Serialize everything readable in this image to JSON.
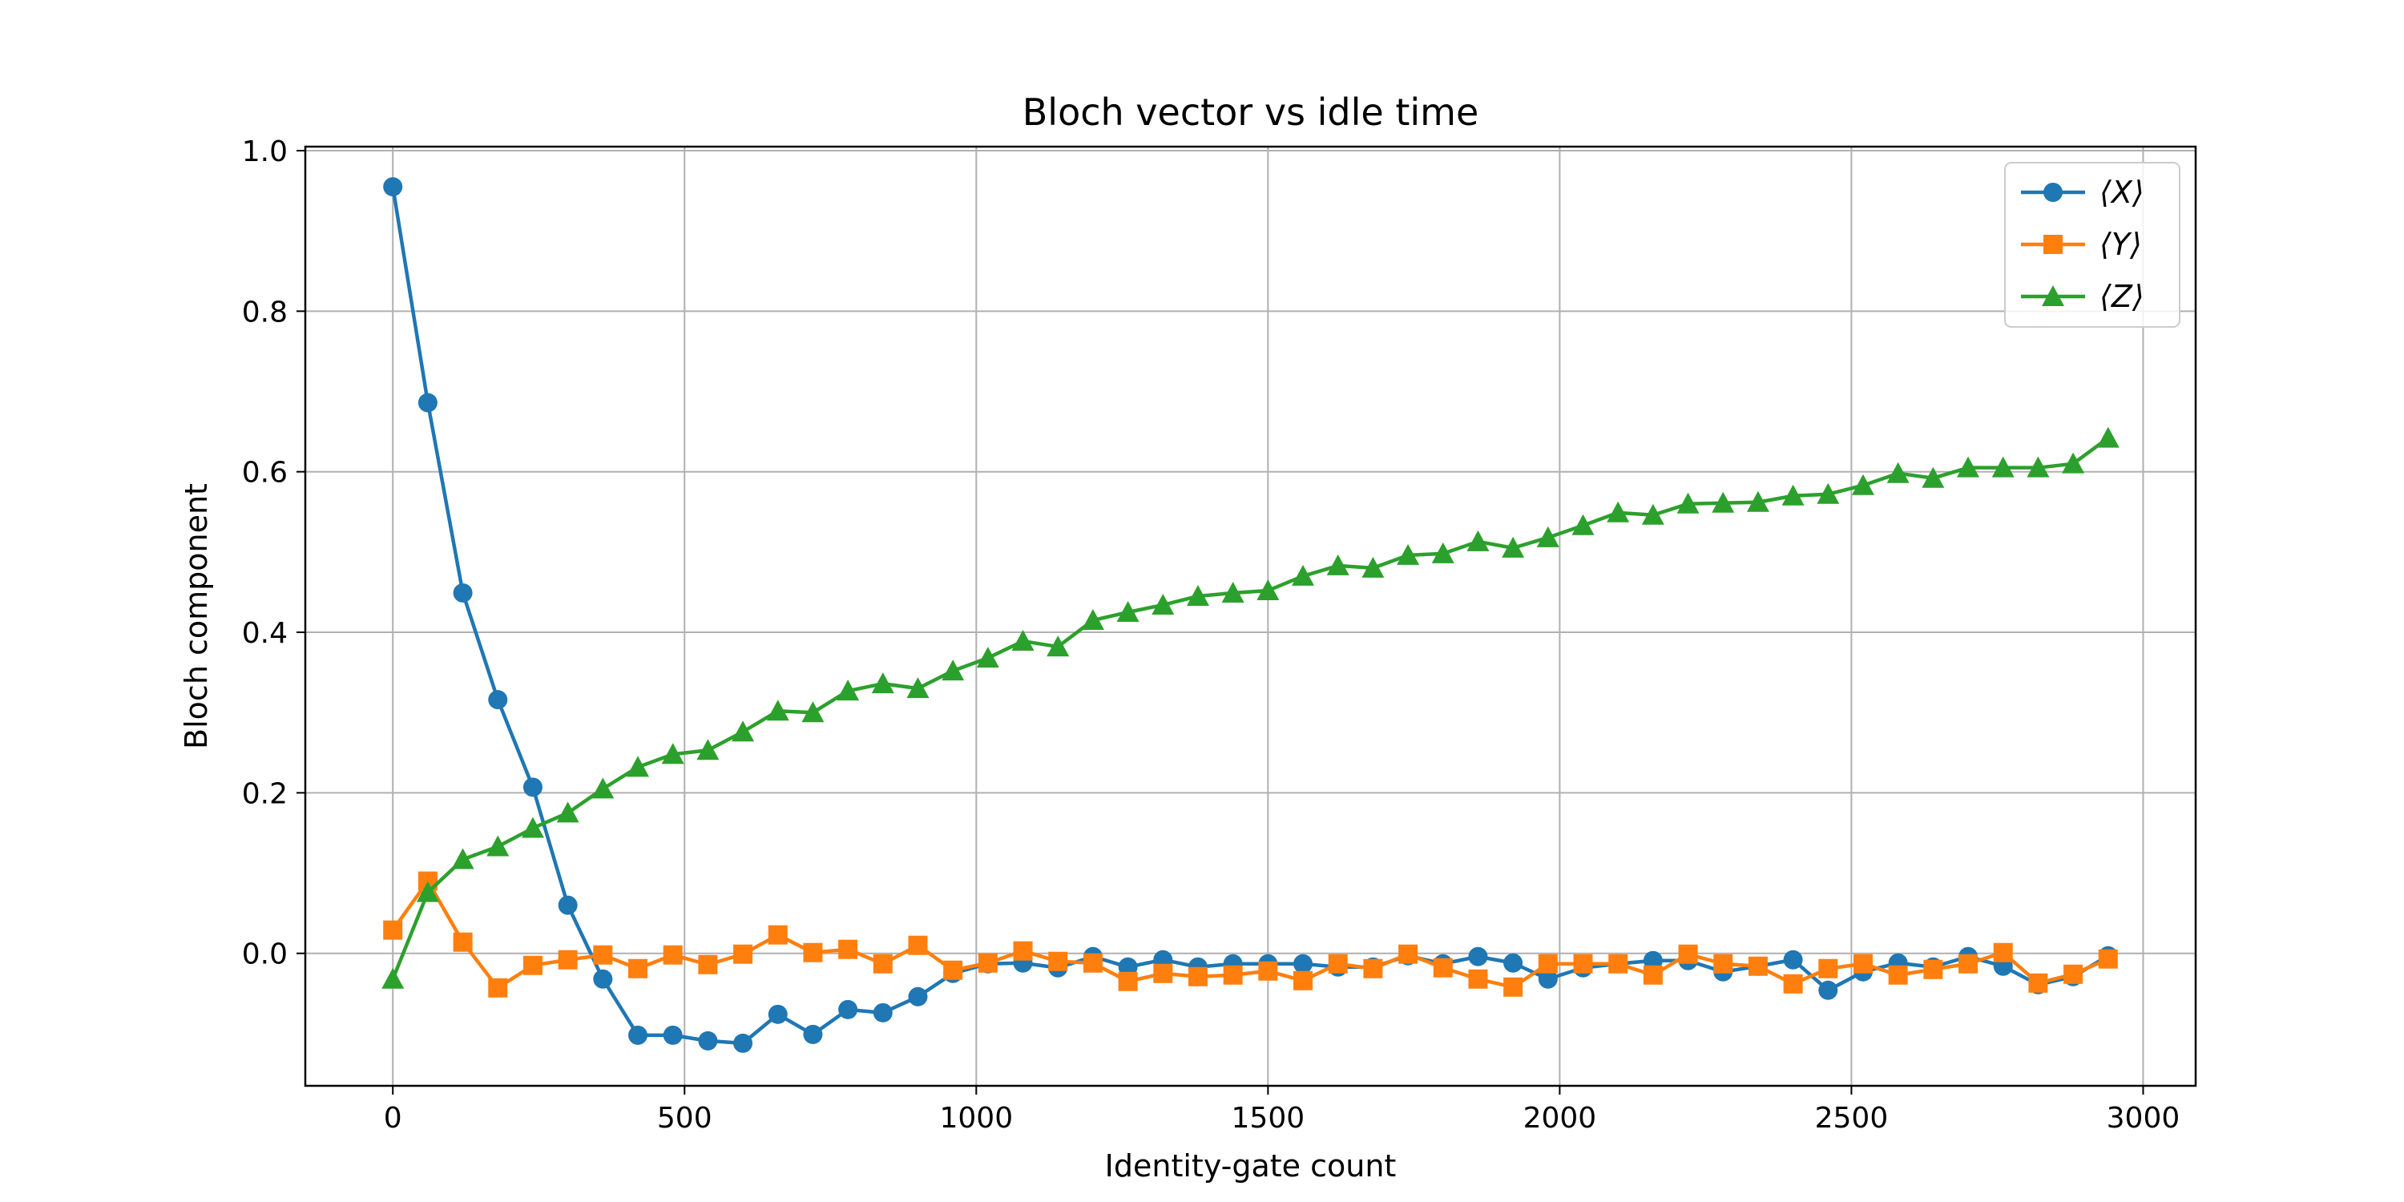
{
  "chart_data": {
    "type": "line",
    "title": "Bloch vector vs idle time",
    "xlabel": "Identity-gate count",
    "ylabel": "Bloch component",
    "xlim": [
      -150,
      3090
    ],
    "ylim": [
      -0.165,
      1.005
    ],
    "xticks": [
      0,
      500,
      1000,
      1500,
      2000,
      2500,
      3000
    ],
    "xtick_labels": [
      "0",
      "500",
      "1000",
      "1500",
      "2000",
      "2500",
      "3000"
    ],
    "yticks": [
      0.0,
      0.2,
      0.4,
      0.6,
      0.8,
      1.0
    ],
    "ytick_labels": [
      "0.0",
      "0.2",
      "0.4",
      "0.6",
      "0.8",
      "1.0"
    ],
    "grid": true,
    "legend_position": "top-right",
    "x": [
      0,
      60,
      120,
      180,
      240,
      300,
      360,
      420,
      480,
      540,
      600,
      660,
      720,
      780,
      840,
      900,
      960,
      1020,
      1080,
      1140,
      1200,
      1260,
      1320,
      1380,
      1440,
      1500,
      1560,
      1620,
      1680,
      1740,
      1800,
      1860,
      1920,
      1980,
      2040,
      2100,
      2160,
      2220,
      2280,
      2340,
      2400,
      2460,
      2520,
      2580,
      2640,
      2700,
      2760,
      2820,
      2880,
      2940
    ],
    "series": [
      {
        "name": "⟨X⟩",
        "color": "#1f77b4",
        "marker": "circle",
        "values": [
          0.955,
          0.686,
          0.449,
          0.316,
          0.207,
          0.06,
          -0.032,
          -0.102,
          -0.102,
          -0.109,
          -0.112,
          -0.076,
          -0.101,
          -0.07,
          -0.074,
          -0.054,
          -0.025,
          -0.013,
          -0.012,
          -0.018,
          -0.004,
          -0.017,
          -0.008,
          -0.017,
          -0.013,
          -0.013,
          -0.013,
          -0.017,
          -0.017,
          -0.003,
          -0.013,
          -0.004,
          -0.012,
          -0.032,
          -0.018,
          -0.013,
          -0.009,
          -0.009,
          -0.023,
          -0.016,
          -0.008,
          -0.046,
          -0.023,
          -0.012,
          -0.017,
          -0.004,
          -0.016,
          -0.039,
          -0.029,
          -0.003
        ]
      },
      {
        "name": "⟨Y⟩",
        "color": "#ff7f0e",
        "marker": "square",
        "values": [
          0.029,
          0.09,
          0.014,
          -0.043,
          -0.015,
          -0.008,
          -0.002,
          -0.019,
          -0.002,
          -0.014,
          -0.001,
          0.023,
          0.001,
          0.005,
          -0.013,
          0.01,
          -0.021,
          -0.012,
          0.003,
          -0.01,
          -0.012,
          -0.035,
          -0.025,
          -0.029,
          -0.027,
          -0.022,
          -0.034,
          -0.013,
          -0.019,
          -0.001,
          -0.018,
          -0.032,
          -0.042,
          -0.013,
          -0.013,
          -0.013,
          -0.027,
          -0.001,
          -0.013,
          -0.016,
          -0.038,
          -0.019,
          -0.013,
          -0.027,
          -0.02,
          -0.013,
          0.001,
          -0.037,
          -0.026,
          -0.007
        ]
      },
      {
        "name": "⟨Z⟩",
        "color": "#2ca02c",
        "marker": "triangle",
        "values": [
          -0.032,
          0.076,
          0.117,
          0.133,
          0.156,
          0.175,
          0.205,
          0.232,
          0.248,
          0.253,
          0.276,
          0.302,
          0.3,
          0.327,
          0.336,
          0.33,
          0.352,
          0.368,
          0.389,
          0.382,
          0.415,
          0.425,
          0.434,
          0.445,
          0.449,
          0.452,
          0.47,
          0.483,
          0.48,
          0.496,
          0.498,
          0.513,
          0.505,
          0.518,
          0.533,
          0.549,
          0.546,
          0.56,
          0.561,
          0.562,
          0.57,
          0.572,
          0.583,
          0.598,
          0.592,
          0.605,
          0.605,
          0.605,
          0.61,
          0.642
        ]
      }
    ]
  }
}
